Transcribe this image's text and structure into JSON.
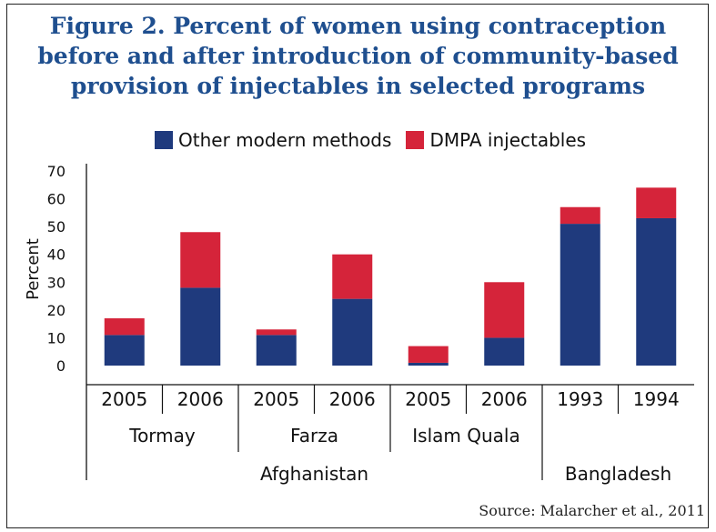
{
  "chart_data": {
    "type": "bar",
    "stacked": true,
    "title_lines": [
      "Figure 2. Percent of women using contraception",
      "before and after introduction of community-based",
      "provision of injectables in selected programs"
    ],
    "ylabel": "Percent",
    "ylim": [
      0,
      70
    ],
    "yticks": [
      0,
      10,
      20,
      30,
      40,
      50,
      60,
      70
    ],
    "categories": [
      "2005",
      "2006",
      "2005",
      "2006",
      "2005",
      "2006",
      "1993",
      "1994"
    ],
    "groups": [
      {
        "label": "Tormay",
        "span": [
          0,
          1
        ]
      },
      {
        "label": "Farza",
        "span": [
          2,
          3
        ]
      },
      {
        "label": "Islam Quala",
        "span": [
          4,
          5
        ]
      }
    ],
    "supergroups": [
      {
        "label": "Afghanistan",
        "span": [
          0,
          5
        ]
      },
      {
        "label": "Bangladesh",
        "span": [
          6,
          7
        ]
      }
    ],
    "series": [
      {
        "name": "Other modern methods",
        "color": "#1f3a7d",
        "values": [
          11,
          28,
          11,
          24,
          1,
          10,
          51,
          53
        ]
      },
      {
        "name": "DMPA injectables",
        "color": "#d5243a",
        "values": [
          6,
          20,
          2,
          16,
          6,
          20,
          6,
          11
        ]
      }
    ],
    "legend_position": "top",
    "grid": false
  },
  "source": "Source: Malarcher et al., 2011"
}
